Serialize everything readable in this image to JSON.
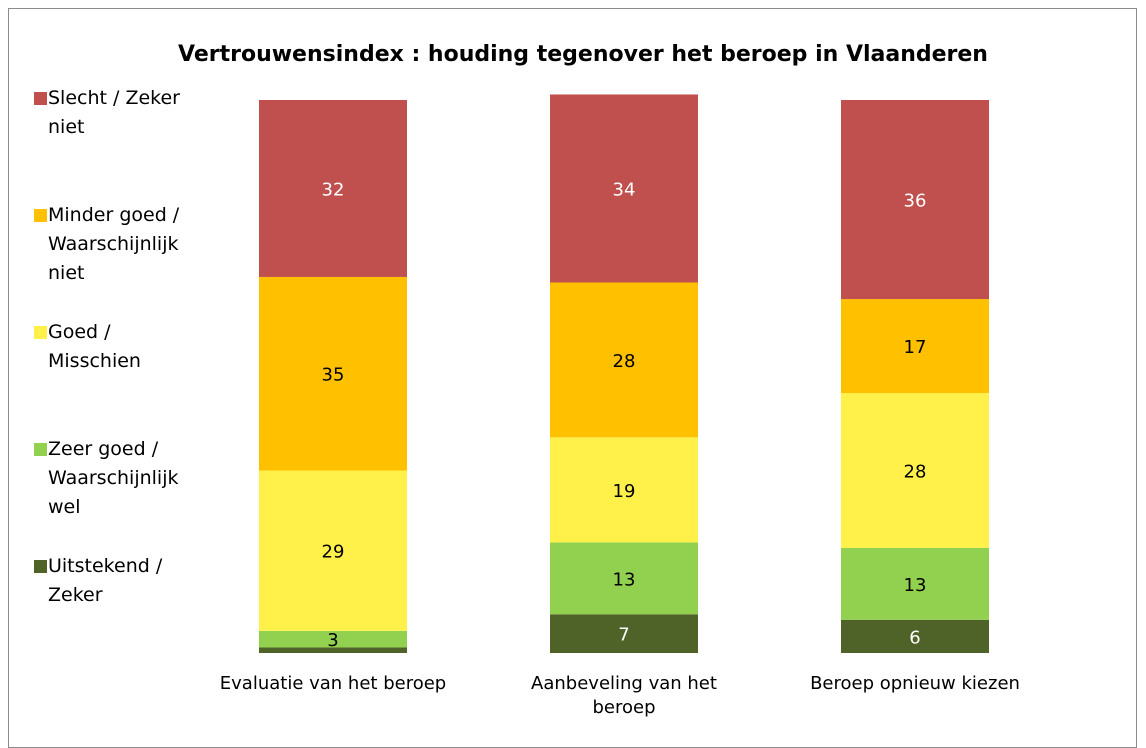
{
  "chart_data": {
    "type": "stacked_bar",
    "title": "Vertrouwensindex : houding tegenover het beroep in Vlaanderen",
    "categories": [
      "Evaluatie van het beroep",
      "Aanbeveling van het beroep",
      "Beroep opnieuw kiezen"
    ],
    "series": [
      {
        "name": "Uitstekend / Zeker",
        "color": "#4f6228",
        "label_color": "#ffffff",
        "values": [
          1,
          7,
          6
        ]
      },
      {
        "name": "Zeer goed / Waarschijnlijk wel",
        "color": "#92d050",
        "label_color": "#000000",
        "values": [
          3,
          13,
          13
        ]
      },
      {
        "name": "Goed / Misschien",
        "color": "#fff14a",
        "label_color": "#000000",
        "values": [
          29,
          19,
          28
        ]
      },
      {
        "name": "Minder goed / Waarschijnlijk niet",
        "color": "#ffc000",
        "label_color": "#000000",
        "values": [
          35,
          28,
          17
        ]
      },
      {
        "name": "Slecht / Zeker niet",
        "color": "#c0504d",
        "label_color": "#ffffff",
        "values": [
          32,
          34,
          36
        ]
      }
    ],
    "ylim": [
      0,
      100
    ],
    "legend": "left"
  }
}
